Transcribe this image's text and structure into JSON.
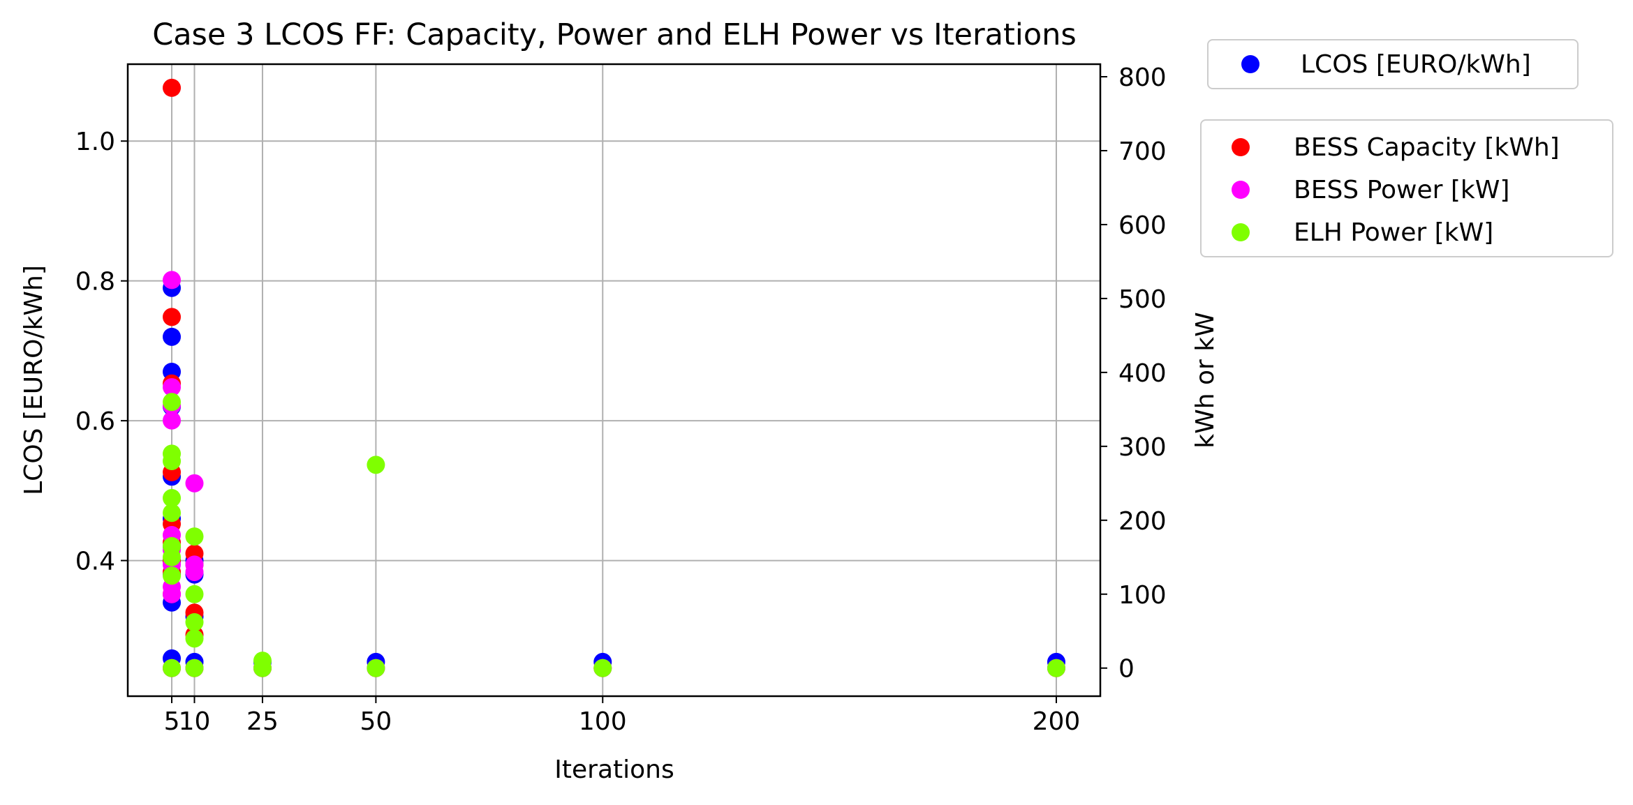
{
  "chart_data": {
    "type": "scatter",
    "title": "Case 3 LCOS FF: Capacity, Power and ELH Power vs Iterations",
    "xlabel": "Iterations",
    "ylabel_left": "LCOS [EURO/kWh]",
    "ylabel_right": "kWh or kW",
    "x_ticks": [
      5,
      10,
      25,
      50,
      100,
      200
    ],
    "x_tick_labels": [
      "5",
      "10",
      "25",
      "50",
      "100",
      "200"
    ],
    "xlim": [
      -4.7,
      209.7
    ],
    "ylim_left": [
      0.206,
      1.11
    ],
    "ylim_right": [
      -38,
      817
    ],
    "y_left_ticks": [
      0.4,
      0.6,
      0.8,
      1.0
    ],
    "y_left_tick_labels": [
      "0.4",
      "0.6",
      "0.8",
      "1.0"
    ],
    "y_right_ticks": [
      0,
      100,
      200,
      300,
      400,
      500,
      600,
      700,
      800
    ],
    "y_right_tick_labels": [
      "0",
      "100",
      "200",
      "300",
      "400",
      "500",
      "600",
      "700",
      "800"
    ],
    "grid": true,
    "legends": [
      {
        "placement": "outside-top-right",
        "entries": [
          0
        ]
      },
      {
        "placement": "outside-right",
        "entries": [
          1,
          2,
          3
        ]
      }
    ],
    "series": [
      {
        "name": "LCOS [EURO/kWh]",
        "color": "#0000ff",
        "axis": "left",
        "points": [
          [
            5,
            0.79
          ],
          [
            5,
            0.72
          ],
          [
            5,
            0.67
          ],
          [
            5,
            0.62
          ],
          [
            5,
            0.52
          ],
          [
            5,
            0.46
          ],
          [
            5,
            0.42
          ],
          [
            5,
            0.4
          ],
          [
            5,
            0.38
          ],
          [
            5,
            0.34
          ],
          [
            5,
            0.26
          ],
          [
            10,
            0.4
          ],
          [
            10,
            0.38
          ],
          [
            10,
            0.32
          ],
          [
            10,
            0.255
          ],
          [
            25,
            0.255
          ],
          [
            50,
            0.255
          ],
          [
            100,
            0.255
          ],
          [
            200,
            0.255
          ]
        ]
      },
      {
        "name": "BESS Capacity [kWh]",
        "color": "#ff0000",
        "axis": "right",
        "points": [
          [
            5,
            785
          ],
          [
            5,
            475
          ],
          [
            5,
            385
          ],
          [
            5,
            265
          ],
          [
            5,
            195
          ],
          [
            5,
            170
          ],
          [
            5,
            145
          ],
          [
            5,
            130
          ],
          [
            5,
            100
          ],
          [
            5,
            0
          ],
          [
            10,
            155
          ],
          [
            10,
            140
          ],
          [
            10,
            75
          ],
          [
            10,
            45
          ],
          [
            10,
            0
          ],
          [
            25,
            0
          ],
          [
            50,
            0
          ],
          [
            100,
            0
          ],
          [
            200,
            0
          ]
        ]
      },
      {
        "name": "BESS Power [kW]",
        "color": "#ff00ff",
        "axis": "right",
        "points": [
          [
            5,
            525
          ],
          [
            5,
            380
          ],
          [
            5,
            355
          ],
          [
            5,
            335
          ],
          [
            5,
            180
          ],
          [
            5,
            160
          ],
          [
            5,
            140
          ],
          [
            5,
            110
          ],
          [
            5,
            100
          ],
          [
            5,
            0
          ],
          [
            10,
            250
          ],
          [
            10,
            140
          ],
          [
            10,
            130
          ],
          [
            10,
            0
          ],
          [
            25,
            0
          ],
          [
            50,
            0
          ],
          [
            100,
            0
          ],
          [
            200,
            0
          ]
        ]
      },
      {
        "name": "ELH Power [kW]",
        "color": "#7fff00",
        "axis": "right",
        "points": [
          [
            5,
            360
          ],
          [
            5,
            290
          ],
          [
            5,
            280
          ],
          [
            5,
            230
          ],
          [
            5,
            210
          ],
          [
            5,
            165
          ],
          [
            5,
            150
          ],
          [
            5,
            125
          ],
          [
            5,
            0
          ],
          [
            10,
            178
          ],
          [
            10,
            100
          ],
          [
            10,
            62
          ],
          [
            10,
            40
          ],
          [
            10,
            0
          ],
          [
            25,
            10
          ],
          [
            25,
            0
          ],
          [
            50,
            275
          ],
          [
            50,
            0
          ],
          [
            100,
            0
          ],
          [
            200,
            0
          ]
        ]
      }
    ]
  }
}
